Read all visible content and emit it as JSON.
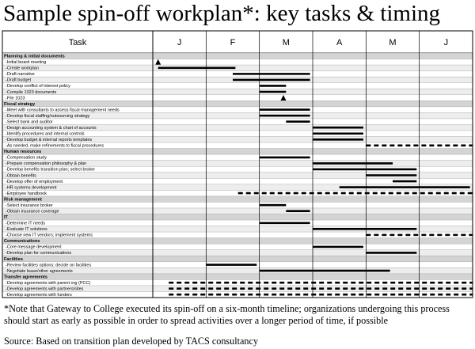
{
  "title": "Sample spin-off workplan*: key tasks & timing",
  "header": {
    "task": "Task",
    "months": [
      "J",
      "F",
      "M",
      "A",
      "M",
      "J"
    ]
  },
  "sections": [
    {
      "name": "Planning & initial documents",
      "tasks": [
        {
          "label": "-Initial board meeting",
          "milestone": 0.1
        },
        {
          "label": "-Create workplan",
          "start": 0.1,
          "end": 1.55
        },
        {
          "label": "-Draft narrative",
          "start": 1.5,
          "end": 2.95
        },
        {
          "label": "-Draft budget",
          "start": 1.5,
          "end": 2.95
        },
        {
          "label": "-Develop conflict of interest policy",
          "start": 2.0,
          "end": 2.5
        },
        {
          "label": "-Compile 1023 documents",
          "start": 2.0,
          "end": 2.5
        },
        {
          "label": "-File 1023",
          "milestone": 2.45
        }
      ]
    },
    {
      "name": "Fiscal strategy",
      "tasks": [
        {
          "label": "-Meet with consultants to assess fiscal management needs",
          "start": 2.0,
          "end": 2.95
        },
        {
          "label": "-Develop fiscal staffing/outsourcing strategy",
          "start": 2.0,
          "end": 2.95
        },
        {
          "label": "-Select bank and auditor",
          "start": 2.5,
          "end": 2.95
        },
        {
          "label": "-Design accounting system & chart of accounts",
          "start": 3.0,
          "end": 3.95
        },
        {
          "label": "-Identify procedures and internal controls",
          "start": 3.0,
          "end": 3.95
        },
        {
          "label": "-Develop budget & internal reports templates",
          "start": 3.0,
          "end": 3.95
        },
        {
          "label": "-As needed, make refinements to fiscal procedures",
          "start": 4.0,
          "end": 6.0,
          "dashed": true
        }
      ]
    },
    {
      "name": "Human resources",
      "tasks": [
        {
          "label": "-Compensation study",
          "start": 2.0,
          "end": 2.95
        },
        {
          "label": "-Prepare compensation philosophy & plan",
          "start": 3.0,
          "end": 4.5
        },
        {
          "label": "-Develop benefits transition plan; select broker",
          "start": 3.0,
          "end": 4.95
        },
        {
          "label": "-Obtain benefits",
          "start": 4.0,
          "end": 4.95
        },
        {
          "label": "-Develop offer of employment",
          "start": 4.5,
          "end": 4.95
        },
        {
          "label": "-HR systems development",
          "start": 3.5,
          "end": 5.95
        },
        {
          "label": "-Employee handbook",
          "start": 1.6,
          "end": 6.0,
          "dashed": true
        }
      ]
    },
    {
      "name": "Risk management",
      "tasks": [
        {
          "label": "-Select insurance broker",
          "start": 2.0,
          "end": 2.5
        },
        {
          "label": "-Obtain insurance coverage",
          "start": 2.5,
          "end": 2.95
        }
      ]
    },
    {
      "name": "IT",
      "tasks": [
        {
          "label": "-Determine IT needs",
          "start": 2.0,
          "end": 2.95
        },
        {
          "label": "-Evaluate IT solutions",
          "start": 3.0,
          "end": 4.95
        },
        {
          "label": "-Choose new IT vendors; implement systems",
          "start": 4.0,
          "end": 6.0,
          "dashed": true
        }
      ]
    },
    {
      "name": "Communications",
      "tasks": [
        {
          "label": "-Core message development",
          "start": 3.0,
          "end": 3.95
        },
        {
          "label": "-Develop plan for communications",
          "start": 4.0,
          "end": 4.95
        }
      ]
    },
    {
      "name": "Facilities",
      "tasks": [
        {
          "label": "-Review facilities options; decide on facilities",
          "start": 1.0,
          "end": 1.95
        },
        {
          "label": "-Negotiate lease/other agreements",
          "start": 2.0,
          "end": 4.45
        }
      ]
    },
    {
      "name": "Transfer agreements",
      "tasks": [
        {
          "label": "-Develop agreements with parent org (PCC)",
          "start": 0.3,
          "end": 6.0,
          "dashed": true
        },
        {
          "label": "-Develop agreements with partners/sites",
          "start": 0.3,
          "end": 6.0,
          "dashed": true
        },
        {
          "label": "-Develop agreements with funders",
          "start": 0.3,
          "end": 6.0,
          "dashed": true
        }
      ]
    }
  ],
  "footnote": "*Note that Gateway to College executed its spin-off on a six-month timeline; organizations undergoing this process should start as early as possible in order to spread activities over a longer period of time, if possible",
  "source": "Source: Based on transition plan developed by TACS consultancy"
}
